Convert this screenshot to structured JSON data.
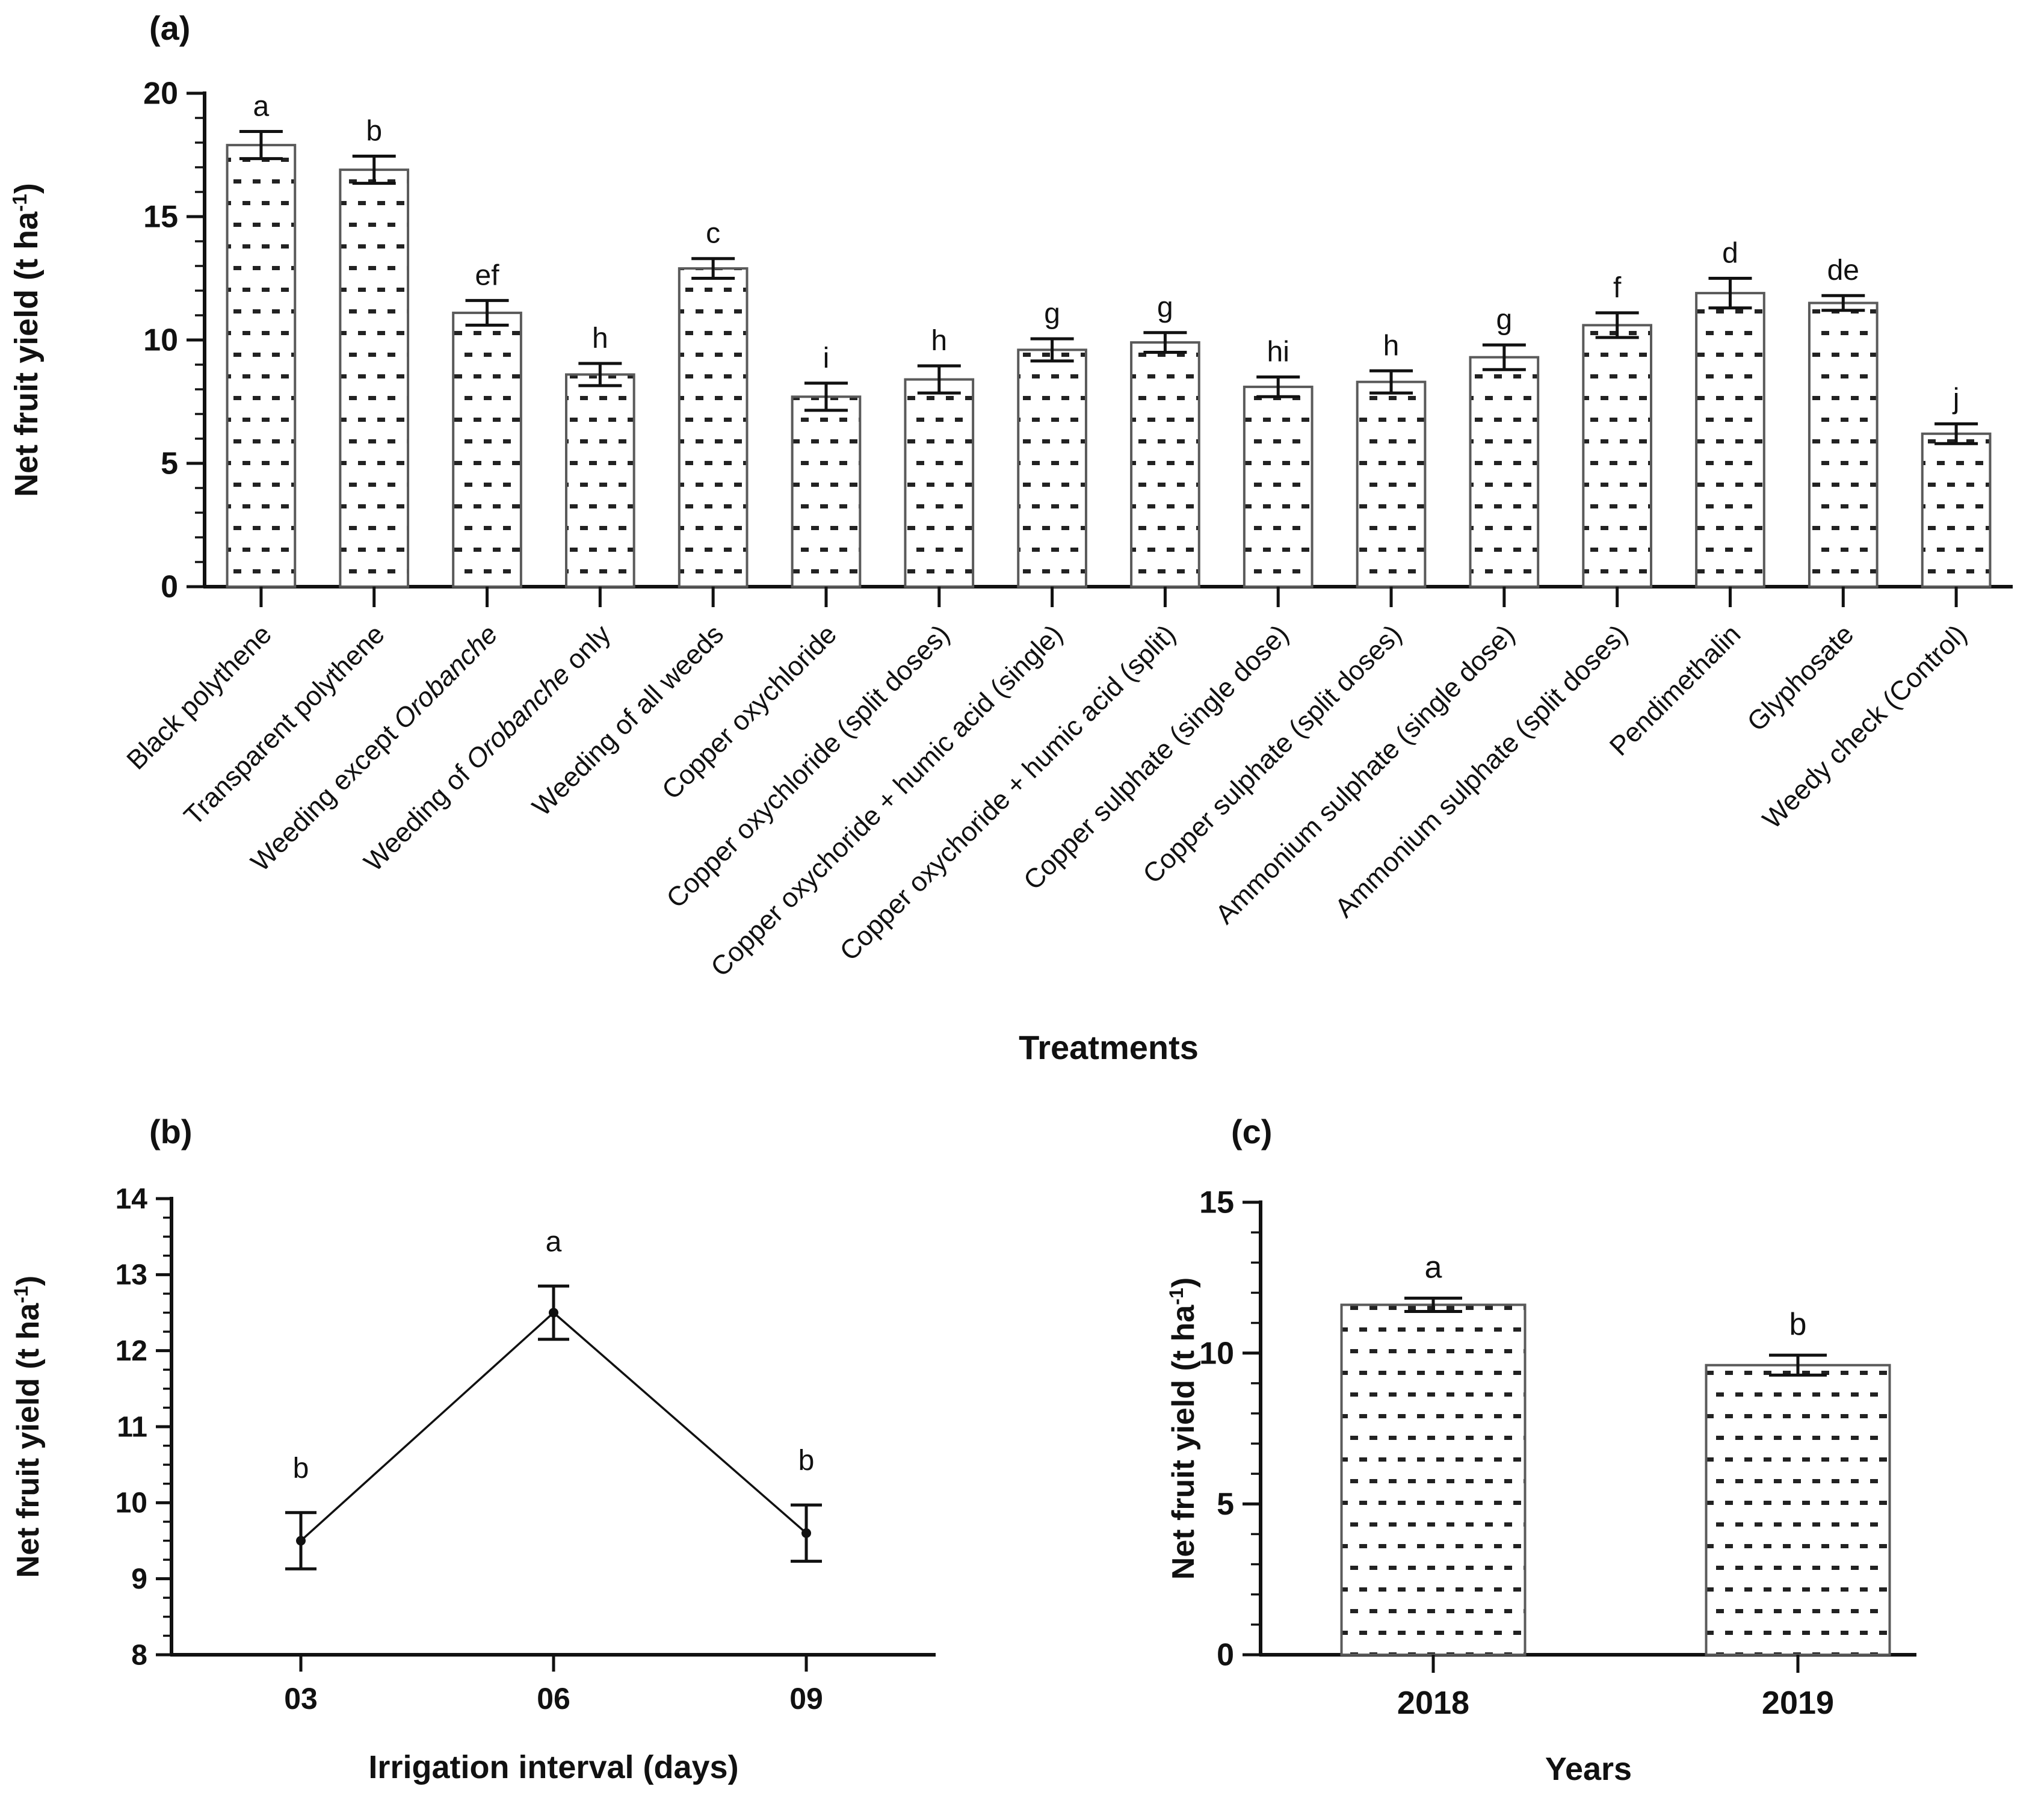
{
  "figure": {
    "background": "#ffffff",
    "colors": {
      "axis": "#111111",
      "text": "#111111",
      "bar_stroke": "#5a5a5a",
      "bar_fill": "#ffffff",
      "dot": "#222222",
      "error_bar": "#111111"
    },
    "legend": "none",
    "grid": "off"
  },
  "chart_data": [
    {
      "tag": "(a)",
      "type": "bar",
      "title": "",
      "xlabel": "Treatments",
      "ylabel": "Net fruit yield (t ha⁻¹)",
      "ylim": [
        0,
        20
      ],
      "ytick_step": 5,
      "ytick_minor_step": 1,
      "ytick_labels": [
        "0",
        "5",
        "10",
        "15",
        "20"
      ],
      "italic_word": "Orobanche",
      "categories": [
        "Black polythene",
        "Transparent polythene",
        "Weeding except Orobanche",
        "Weeding of Orobanche only",
        "Weeding of all weeds",
        "Copper oxychloride",
        "Copper oxychloride (split doses)",
        "Copper oxychoride + humic acid (single)",
        "Copper oxychoride + humic acid (split)",
        "Copper sulphate (single dose)",
        "Copper sulphate (split doses)",
        "Ammonium sulphate (single dose)",
        "Ammonium sulphate (split doses)",
        "Pendimethalin",
        "Glyphosate",
        "Weedy check (Control)"
      ],
      "values": [
        17.9,
        16.9,
        11.1,
        8.6,
        12.9,
        7.7,
        8.4,
        9.6,
        9.9,
        8.1,
        8.3,
        9.3,
        10.6,
        11.9,
        11.5,
        6.2
      ],
      "errors": [
        0.55,
        0.55,
        0.5,
        0.45,
        0.4,
        0.55,
        0.55,
        0.45,
        0.4,
        0.4,
        0.45,
        0.5,
        0.5,
        0.6,
        0.3,
        0.4
      ],
      "sig_letters": [
        "a",
        "b",
        "ef",
        "h",
        "c",
        "i",
        "h",
        "g",
        "g",
        "hi",
        "h",
        "g",
        "f",
        "d",
        "de",
        "j"
      ]
    },
    {
      "tag": "(b)",
      "type": "line",
      "title": "",
      "xlabel": "Irrigation interval (days)",
      "ylabel": "Net fruit yield (t ha⁻¹)",
      "ylim": [
        8,
        14
      ],
      "ytick_step": 1,
      "ytick_minor_step": 0.25,
      "ytick_labels": [
        "8",
        "9",
        "10",
        "11",
        "12",
        "13",
        "14"
      ],
      "categories": [
        "03",
        "06",
        "09"
      ],
      "values": [
        9.5,
        12.5,
        9.6
      ],
      "errors": [
        0.37,
        0.35,
        0.37
      ],
      "sig_letters": [
        "b",
        "a",
        "b"
      ]
    },
    {
      "tag": "(c)",
      "type": "bar",
      "title": "",
      "xlabel": "Years",
      "ylabel": "Net fruit yield (t ha⁻¹)",
      "ylim": [
        0,
        15
      ],
      "ytick_step": 5,
      "ytick_minor_step": 1,
      "ytick_labels": [
        "0",
        "5",
        "10",
        "15"
      ],
      "categories": [
        "2018",
        "2019"
      ],
      "values": [
        11.6,
        9.6
      ],
      "errors": [
        0.22,
        0.33
      ],
      "sig_letters": [
        "a",
        "b"
      ]
    }
  ]
}
